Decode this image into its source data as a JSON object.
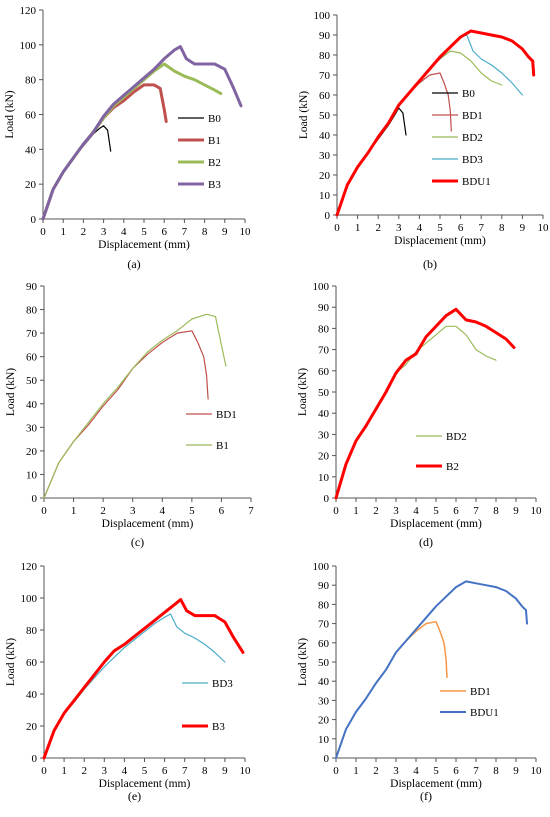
{
  "chart_data": [
    {
      "type": "line",
      "caption": "(a)",
      "xlabel": "Displacement (mm)",
      "ylabel": "Load (kN)",
      "xlim": [
        0,
        10
      ],
      "ylim": [
        0,
        120
      ],
      "xticks": [
        0,
        1,
        2,
        3,
        4,
        5,
        6,
        7,
        8,
        9,
        10
      ],
      "yticks": [
        0,
        20,
        40,
        60,
        80,
        100,
        120
      ],
      "legend_position": "right",
      "grid": false,
      "series": [
        {
          "name": "B0",
          "color": "#000000",
          "width": 1.2,
          "x": [
            0,
            0.5,
            1,
            1.5,
            2,
            2.5,
            2.8,
            3.0,
            3.2,
            3.35
          ],
          "y": [
            0,
            17,
            27,
            35,
            42,
            49,
            52,
            53.5,
            51,
            39
          ]
        },
        {
          "name": "B1",
          "color": "#c0504d",
          "width": 3,
          "x": [
            0,
            0.5,
            1,
            1.5,
            2,
            2.5,
            3,
            3.5,
            4,
            4.5,
            5,
            5.5,
            5.8,
            6.0,
            6.1
          ],
          "y": [
            0,
            17,
            27,
            35,
            43,
            50,
            58,
            64,
            68,
            73,
            77,
            77,
            75,
            63,
            56
          ]
        },
        {
          "name": "B2",
          "color": "#9bbb59",
          "width": 3,
          "x": [
            0,
            0.5,
            1,
            1.5,
            2,
            2.5,
            3,
            3.5,
            4,
            4.5,
            5,
            5.5,
            6,
            6.5,
            7,
            7.5,
            8,
            8.5,
            8.8
          ],
          "y": [
            0,
            17,
            27,
            35,
            43,
            50,
            58,
            65,
            70,
            75,
            80,
            85,
            89,
            85,
            82,
            80,
            77,
            74,
            72
          ]
        },
        {
          "name": "B3",
          "color": "#8064a2",
          "width": 3,
          "x": [
            0,
            0.5,
            1,
            1.5,
            2,
            2.5,
            3,
            3.5,
            4,
            4.5,
            5,
            5.5,
            6,
            6.5,
            6.8,
            7.1,
            7.5,
            8,
            8.5,
            9,
            9.4,
            9.8
          ],
          "y": [
            0,
            17,
            27,
            35,
            43,
            50,
            59,
            66,
            71,
            76,
            81,
            86,
            92,
            97,
            99,
            92,
            89,
            89,
            89,
            86,
            76,
            65
          ]
        }
      ]
    },
    {
      "type": "line",
      "caption": "(b)",
      "xlabel": "Displacement (mm)",
      "ylabel": "Load (kN)",
      "xlim": [
        0,
        10
      ],
      "ylim": [
        0,
        100
      ],
      "xticks": [
        0,
        1,
        2,
        3,
        4,
        5,
        6,
        7,
        8,
        9,
        10
      ],
      "yticks": [
        0,
        10,
        20,
        30,
        40,
        50,
        60,
        70,
        80,
        90,
        100
      ],
      "legend_position": "right",
      "grid": false,
      "series": [
        {
          "name": "B0",
          "color": "#000000",
          "width": 1.2,
          "x": [
            0,
            0.5,
            1,
            1.5,
            2,
            2.5,
            2.8,
            3.0,
            3.2,
            3.35
          ],
          "y": [
            0,
            15,
            24,
            31,
            38,
            45,
            50,
            53.5,
            51,
            40
          ]
        },
        {
          "name": "BD1",
          "color": "#c0504d",
          "width": 1.2,
          "x": [
            0,
            0.5,
            1,
            1.5,
            2,
            2.5,
            3,
            3.5,
            4,
            4.5,
            5,
            5.2,
            5.4,
            5.5,
            5.55
          ],
          "y": [
            0,
            15,
            24,
            31,
            39,
            46,
            55,
            61,
            66,
            70,
            71,
            66,
            60,
            52,
            42
          ]
        },
        {
          "name": "BD2",
          "color": "#9bbb59",
          "width": 1.2,
          "x": [
            0,
            0.5,
            1,
            1.5,
            2,
            2.5,
            3,
            3.5,
            4,
            4.5,
            5,
            5.5,
            6,
            6.5,
            7,
            7.5,
            8
          ],
          "y": [
            0,
            15,
            24,
            31,
            39,
            46,
            55,
            61,
            67,
            73,
            78,
            82,
            81,
            77,
            71,
            67,
            65
          ]
        },
        {
          "name": "BD3",
          "color": "#4bacc6",
          "width": 1.2,
          "x": [
            0,
            0.5,
            1,
            1.5,
            2,
            2.5,
            3,
            3.5,
            4,
            4.5,
            5,
            5.5,
            6,
            6.3,
            6.6,
            7,
            7.5,
            8,
            8.5,
            9
          ],
          "y": [
            0,
            15,
            24,
            31,
            39,
            46,
            55,
            61,
            67,
            73,
            78,
            84,
            89,
            90,
            82,
            78,
            75,
            71,
            66,
            60
          ]
        },
        {
          "name": "BDU1",
          "color": "#ff0000",
          "width": 3,
          "x": [
            0,
            0.5,
            1,
            1.5,
            2,
            2.5,
            3,
            3.5,
            4,
            4.5,
            5,
            5.5,
            6,
            6.5,
            7,
            7.5,
            8,
            8.5,
            9,
            9.3,
            9.5,
            9.55
          ],
          "y": [
            0,
            15,
            24,
            31,
            39,
            46,
            55,
            61,
            67,
            73,
            79,
            84,
            89,
            92,
            91,
            90,
            89,
            87,
            83,
            79,
            77,
            70
          ]
        }
      ]
    },
    {
      "type": "line",
      "caption": "(c)",
      "xlabel": "Displacement (mm)",
      "ylabel": "Load (kN)",
      "xlim": [
        0,
        7
      ],
      "ylim": [
        0,
        90
      ],
      "xticks": [
        0,
        1,
        2,
        3,
        4,
        5,
        6,
        7
      ],
      "yticks": [
        0,
        10,
        20,
        30,
        40,
        50,
        60,
        70,
        80,
        90
      ],
      "legend_position": "right",
      "grid": false,
      "series": [
        {
          "name": "BD1",
          "color": "#c0504d",
          "width": 1.2,
          "x": [
            0,
            0.5,
            1,
            1.5,
            2,
            2.5,
            3,
            3.5,
            4,
            4.5,
            5,
            5.2,
            5.4,
            5.5,
            5.55
          ],
          "y": [
            0,
            15,
            24,
            31,
            39,
            46,
            55,
            61,
            66,
            70,
            71,
            66,
            60,
            52,
            42
          ]
        },
        {
          "name": "B1",
          "color": "#9bbb59",
          "width": 1.2,
          "x": [
            0,
            0.5,
            1,
            1.5,
            2,
            2.5,
            3,
            3.5,
            4,
            4.5,
            5,
            5.5,
            5.8,
            6.0,
            6.15
          ],
          "y": [
            0,
            15,
            24,
            32,
            40,
            47,
            55,
            62,
            67,
            71,
            76,
            78,
            77,
            65,
            56
          ]
        }
      ]
    },
    {
      "type": "line",
      "caption": "(d)",
      "xlabel": "Displacement (mm)",
      "ylabel": "Load (kN)",
      "xlim": [
        0,
        10
      ],
      "ylim": [
        0,
        100
      ],
      "xticks": [
        0,
        1,
        2,
        3,
        4,
        5,
        6,
        7,
        8,
        9,
        10
      ],
      "yticks": [
        0,
        10,
        20,
        30,
        40,
        50,
        60,
        70,
        80,
        90,
        100
      ],
      "legend_position": "right",
      "grid": false,
      "series": [
        {
          "name": "BD2",
          "color": "#9bbb59",
          "width": 1.2,
          "x": [
            0,
            0.5,
            1,
            1.5,
            2,
            2.5,
            3,
            3.5,
            4,
            4.5,
            5,
            5.5,
            6,
            6.5,
            7,
            7.5,
            8
          ],
          "y": [
            0,
            16,
            27,
            34,
            42,
            50,
            59,
            63,
            69,
            73,
            77,
            81,
            81,
            77,
            70,
            67,
            65
          ]
        },
        {
          "name": "B2",
          "color": "#ff0000",
          "width": 3,
          "x": [
            0,
            0.5,
            1,
            1.5,
            2,
            2.5,
            3,
            3.5,
            4,
            4.5,
            5,
            5.5,
            6,
            6.5,
            7,
            7.5,
            8,
            8.5,
            8.9
          ],
          "y": [
            0,
            16,
            27,
            34,
            42,
            50,
            59,
            65,
            68,
            76,
            81,
            86,
            89,
            84,
            83,
            81,
            78,
            75,
            71
          ]
        }
      ]
    },
    {
      "type": "line",
      "caption": "(e)",
      "xlabel": "Displacement (mm)",
      "ylabel": "Load (kN)",
      "xlim": [
        0,
        10
      ],
      "ylim": [
        0,
        120
      ],
      "xticks": [
        0,
        1,
        2,
        3,
        4,
        5,
        6,
        7,
        8,
        9,
        10
      ],
      "yticks": [
        0,
        20,
        40,
        60,
        80,
        100,
        120
      ],
      "legend_position": "right",
      "grid": false,
      "series": [
        {
          "name": "BD3",
          "color": "#4bacc6",
          "width": 1.2,
          "x": [
            0,
            0.5,
            1,
            1.5,
            2,
            2.5,
            3,
            3.5,
            4,
            4.5,
            5,
            5.5,
            6,
            6.3,
            6.6,
            7,
            7.5,
            8,
            8.5,
            9
          ],
          "y": [
            0,
            17,
            28,
            35,
            43,
            50,
            57,
            63,
            69,
            74,
            79,
            84,
            88,
            90,
            82,
            78,
            75,
            71,
            66,
            60
          ]
        },
        {
          "name": "B3",
          "color": "#ff0000",
          "width": 3,
          "x": [
            0,
            0.5,
            1,
            1.5,
            2,
            2.5,
            3,
            3.5,
            4,
            4.5,
            5,
            5.5,
            6,
            6.5,
            6.8,
            7.1,
            7.5,
            8,
            8.5,
            9,
            9.4,
            9.9
          ],
          "y": [
            0,
            17,
            28,
            36,
            44,
            52,
            60,
            67,
            71,
            76,
            81,
            86,
            91,
            96,
            99,
            92,
            89,
            89,
            89,
            85,
            76,
            66
          ]
        }
      ]
    },
    {
      "type": "line",
      "caption": "(f)",
      "xlabel": "Displacement (mm)",
      "ylabel": "Load (kN)",
      "xlim": [
        0,
        10
      ],
      "ylim": [
        0,
        100
      ],
      "xticks": [
        0,
        1,
        2,
        3,
        4,
        5,
        6,
        7,
        8,
        9,
        10
      ],
      "yticks": [
        0,
        10,
        20,
        30,
        40,
        50,
        60,
        70,
        80,
        90,
        100
      ],
      "legend_position": "right",
      "grid": false,
      "series": [
        {
          "name": "BD1",
          "color": "#f79646",
          "width": 1.5,
          "x": [
            0,
            0.5,
            1,
            1.5,
            2,
            2.5,
            3,
            3.5,
            4,
            4.5,
            5,
            5.2,
            5.4,
            5.5,
            5.55
          ],
          "y": [
            0,
            15,
            24,
            31,
            39,
            46,
            55,
            61,
            66,
            70,
            71,
            66,
            60,
            52,
            42
          ]
        },
        {
          "name": "BDU1",
          "color": "#4472c4",
          "width": 2,
          "x": [
            0,
            0.5,
            1,
            1.5,
            2,
            2.5,
            3,
            3.5,
            4,
            4.5,
            5,
            5.5,
            6,
            6.5,
            7,
            7.5,
            8,
            8.5,
            9,
            9.3,
            9.5,
            9.55
          ],
          "y": [
            0,
            15,
            24,
            31,
            39,
            46,
            55,
            61,
            67,
            73,
            79,
            84,
            89,
            92,
            91,
            90,
            89,
            87,
            83,
            79,
            77,
            70
          ]
        }
      ]
    }
  ]
}
